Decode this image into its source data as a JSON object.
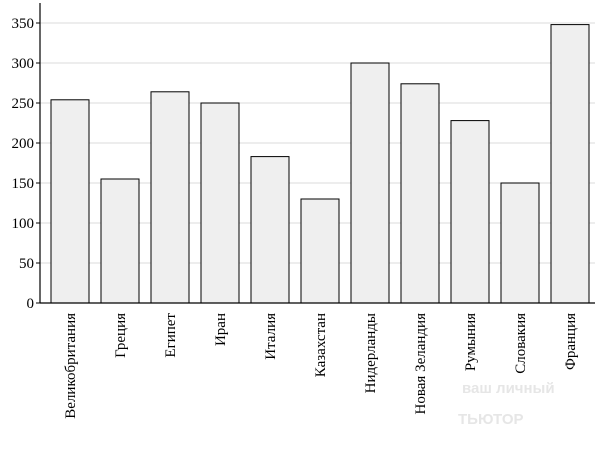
{
  "chart_data": {
    "type": "bar",
    "categories": [
      "Великобритания",
      "Греция",
      "Египет",
      "Иран",
      "Италия",
      "Казахстан",
      "Нидерланды",
      "Новая Зеландия",
      "Румыния",
      "Словакия",
      "Франция"
    ],
    "values": [
      254,
      155,
      264,
      250,
      183,
      130,
      300,
      274,
      228,
      150,
      348
    ],
    "color": "#efefef",
    "ylim": [
      0,
      375
    ],
    "yticks": [
      0,
      50,
      100,
      150,
      200,
      250,
      300,
      350
    ],
    "grid": true
  },
  "watermark": [
    "ваш личный",
    "ТЬЮТОР"
  ]
}
